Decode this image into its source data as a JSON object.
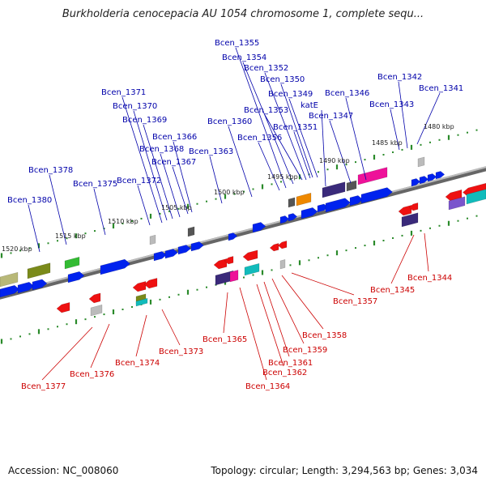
{
  "title": "Burkholderia cenocepacia AU 1054 chromosome 1, complete sequ...",
  "footer": {
    "accession": "Accession: NC_008060",
    "topology": "Topology: circular; Length: 3,294,563 bp; Genes: 3,034"
  },
  "colors": {
    "upper_label": "#0000aa",
    "lower_label": "#cc0000",
    "backbone": "#8c8c8c",
    "tick": "#2a8a2a",
    "forward_gene": "#0022ee",
    "reverse_gene": "#ee1111"
  },
  "kbp_labels": [
    "1480 kbp",
    "1485 kbp",
    "1490 kbp",
    "1495 kbp",
    "1500 kbp",
    "1505 kbp",
    "1510 kbp",
    "1515 kbp",
    "1520 kbp"
  ],
  "upper_genes": [
    "Bcen_1341",
    "Bcen_1342",
    "Bcen_1343",
    "Bcen_1346",
    "Bcen_1347",
    "katE",
    "Bcen_1349",
    "Bcen_1350",
    "Bcen_1351",
    "Bcen_1352",
    "Bcen_1353",
    "Bcen_1354",
    "Bcen_1355",
    "Bcen_1356",
    "Bcen_1360",
    "Bcen_1363",
    "Bcen_1366",
    "Bcen_1367",
    "Bcen_1368",
    "Bcen_1369",
    "Bcen_1370",
    "Bcen_1371",
    "Bcen_1372",
    "Bcen_1375",
    "Bcen_1378",
    "Bcen_1380"
  ],
  "lower_genes": [
    "Bcen_1344",
    "Bcen_1345",
    "Bcen_1357",
    "Bcen_1358",
    "Bcen_1359",
    "Bcen_1361",
    "Bcen_1362",
    "Bcen_1364",
    "Bcen_1365",
    "Bcen_1373",
    "Bcen_1374",
    "Bcen_1376",
    "Bcen_1377"
  ]
}
